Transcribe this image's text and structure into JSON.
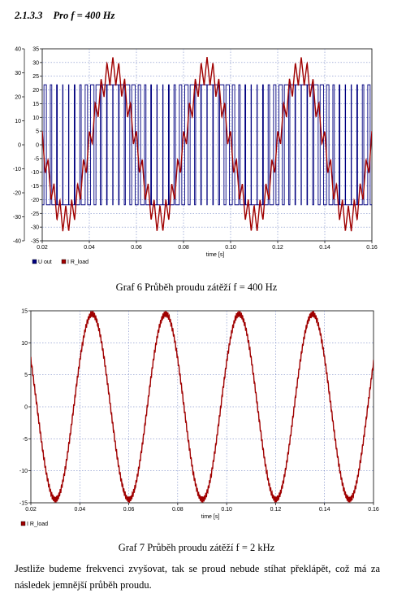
{
  "section": {
    "number": "2.1.3.3",
    "title": "Pro f = 400 Hz"
  },
  "captions": {
    "graph6": "Graf 6 Průběh proudu zátěží f = 400 Hz",
    "graph7": "Graf 7 Průběh proudu zátěží f = 2 kHz"
  },
  "paragraph": "Jestliže budeme frekvenci zvyšovat, tak se proud nebude stíhat překlápět, což má za následek jemnější průběh proudu.",
  "colors": {
    "u_out": "#00007f",
    "i_load": "#a00000",
    "grid": "#5a6fb8"
  },
  "chart_data": [
    {
      "type": "line",
      "xlabel": "time [s]",
      "xlim": [
        0.02,
        0.16
      ],
      "xticks": [
        0.02,
        0.04,
        0.06,
        0.08,
        0.1,
        0.12,
        0.14,
        0.16
      ],
      "xtick_labels": [
        "0.02",
        "0.04",
        "0.06",
        "0.08",
        "0.10",
        "0.12",
        "0.14",
        "0.16"
      ],
      "ylim_left": [
        -40,
        40
      ],
      "yticks_left": [
        -40,
        -30,
        -20,
        -10,
        0,
        10,
        20,
        30,
        40
      ],
      "ylim_right": [
        -35,
        35
      ],
      "yticks_right": [
        -35,
        -30,
        -25,
        -20,
        -15,
        -10,
        -5,
        0,
        5,
        10,
        15,
        20,
        25,
        30,
        35
      ],
      "grid": true,
      "legend_position": "bottom-left",
      "series": [
        {
          "name": "U_out",
          "axis": "left",
          "kind": "pwm",
          "levels": [
            -25,
            25
          ],
          "carrier_hz": 400,
          "modulation_hz": 25,
          "modulation_index": 0.9,
          "phase_deg": 0
        },
        {
          "name": "I_R_load",
          "axis": "right",
          "kind": "sine_ripple",
          "amplitude": 27,
          "frequency_hz": 25,
          "phase_deg": 0,
          "ripple_amplitude": 5,
          "ripple_hz": 400
        }
      ]
    },
    {
      "type": "line",
      "xlabel": "time [s]",
      "xlim": [
        0.02,
        0.16
      ],
      "xticks": [
        0.02,
        0.04,
        0.06,
        0.08,
        0.1,
        0.12,
        0.14,
        0.16
      ],
      "xtick_labels": [
        "0.02",
        "0.04",
        "0.06",
        "0.08",
        "0.10",
        "0.12",
        "0.14",
        "0.16"
      ],
      "ylim": [
        -15,
        15
      ],
      "yticks": [
        -15,
        -10,
        -5,
        0,
        5,
        10,
        15
      ],
      "grid": true,
      "legend_position": "bottom-left",
      "series": [
        {
          "name": "I_R_load",
          "kind": "sine_ripple",
          "amplitude": 14.5,
          "frequency_hz": 33.3,
          "phase_deg": -90,
          "ripple_amplitude": 0.5,
          "ripple_hz": 2000
        }
      ]
    }
  ]
}
